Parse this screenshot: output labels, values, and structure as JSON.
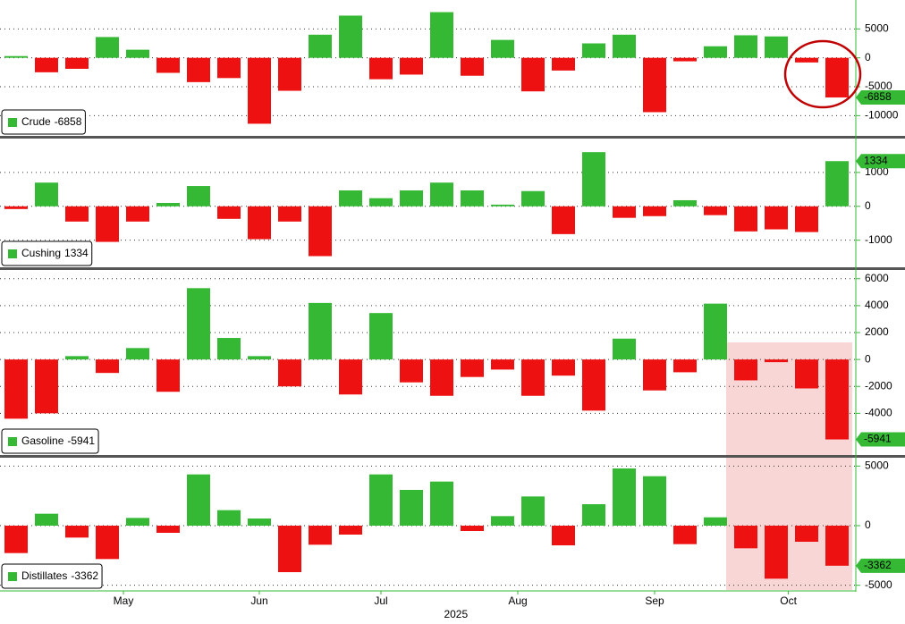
{
  "chart_data": [
    {
      "type": "bar",
      "legend": "bottom-left",
      "grid": true,
      "positive_color": "#35b935",
      "negative_color": "#ee1111",
      "tag_color": "#35b935",
      "categories": [
        null,
        null,
        null,
        null,
        null,
        null,
        null,
        null,
        null,
        null,
        null,
        null,
        null,
        null,
        null,
        null,
        null,
        null,
        null,
        null,
        null,
        null,
        null,
        null,
        null,
        null,
        null,
        null
      ],
      "series": [
        {
          "name": "Crude",
          "values": [
            300,
            -2500,
            -1900,
            3600,
            1400,
            -2600,
            -4200,
            -3500,
            -11400,
            -5700,
            4000,
            7300,
            -3700,
            -2900,
            7900,
            -3100,
            3100,
            -5800,
            -2200,
            2500,
            4000,
            -9400,
            -600,
            2000,
            3900,
            3700,
            -800,
            -6858
          ]
        }
      ],
      "ylim": [
        -13500,
        10000
      ],
      "yticks": [
        5000,
        0,
        -5000,
        -10000
      ]
    },
    {
      "type": "bar",
      "legend": "bottom-left",
      "grid": true,
      "positive_color": "#35b935",
      "negative_color": "#ee1111",
      "tag_color": "#35b935",
      "categories": [
        null,
        null,
        null,
        null,
        null,
        null,
        null,
        null,
        null,
        null,
        null,
        null,
        null,
        null,
        null,
        null,
        null,
        null,
        null,
        null,
        null,
        null,
        null,
        null,
        null,
        null,
        null,
        null
      ],
      "series": [
        {
          "name": "Cushing",
          "values": [
            -80,
            700,
            -450,
            -1050,
            -450,
            100,
            600,
            -370,
            -970,
            -450,
            -1470,
            470,
            240,
            470,
            700,
            470,
            50,
            450,
            -820,
            1600,
            -340,
            -290,
            180,
            -260,
            -740,
            -680,
            -760,
            1334
          ]
        }
      ],
      "ylim": [
        -1800,
        2000
      ],
      "yticks": [
        1000,
        0,
        -1000
      ]
    },
    {
      "type": "bar",
      "legend": "bottom-left",
      "grid": true,
      "positive_color": "#35b935",
      "negative_color": "#ee1111",
      "tag_color": "#35b935",
      "categories": [
        null,
        null,
        null,
        null,
        null,
        null,
        null,
        null,
        null,
        null,
        null,
        null,
        null,
        null,
        null,
        null,
        null,
        null,
        null,
        null,
        null,
        null,
        null,
        null,
        null,
        null,
        null,
        null
      ],
      "series": [
        {
          "name": "Gasoline",
          "values": [
            -4400,
            -4000,
            250,
            -1000,
            850,
            -2400,
            5300,
            1600,
            250,
            -2000,
            4200,
            -2600,
            3450,
            -1700,
            -2700,
            -1300,
            -750,
            -2700,
            -1200,
            -3800,
            1550,
            -2300,
            -950,
            4150,
            -1550,
            -200,
            -2150,
            -5941
          ]
        }
      ],
      "ylim": [
        -7100,
        6650
      ],
      "yticks": [
        6000,
        4000,
        2000,
        0,
        -2000,
        -4000
      ]
    },
    {
      "type": "bar",
      "legend": "bottom-left",
      "grid": true,
      "positive_color": "#35b935",
      "negative_color": "#ee1111",
      "tag_color": "#35b935",
      "categories": [
        null,
        null,
        null,
        null,
        null,
        null,
        null,
        null,
        null,
        null,
        null,
        null,
        null,
        null,
        null,
        null,
        null,
        null,
        null,
        null,
        null,
        null,
        null,
        null,
        null,
        null,
        null,
        null
      ],
      "series": [
        {
          "name": "Distillates",
          "values": [
            -2300,
            1000,
            -1000,
            -2800,
            650,
            -600,
            4300,
            1300,
            600,
            -3900,
            -1600,
            -750,
            4300,
            3000,
            3700,
            -450,
            800,
            2450,
            -1650,
            1800,
            4800,
            4150,
            -1550,
            700,
            -1900,
            -4450,
            -1350,
            -3362
          ]
        }
      ],
      "ylim": [
        -5400,
        5700
      ],
      "yticks": [
        5000,
        0,
        -5000
      ],
      "xticks": [
        {
          "value": 3.53,
          "label": "May"
        },
        {
          "value": 8,
          "label": "Jun"
        },
        {
          "value": 12,
          "label": "Jul"
        },
        {
          "value": 16.5,
          "label": "Aug"
        },
        {
          "value": 21,
          "label": "Sep"
        },
        {
          "value": 25.4,
          "label": "Oct"
        }
      ],
      "xlabel": "2025"
    }
  ]
}
